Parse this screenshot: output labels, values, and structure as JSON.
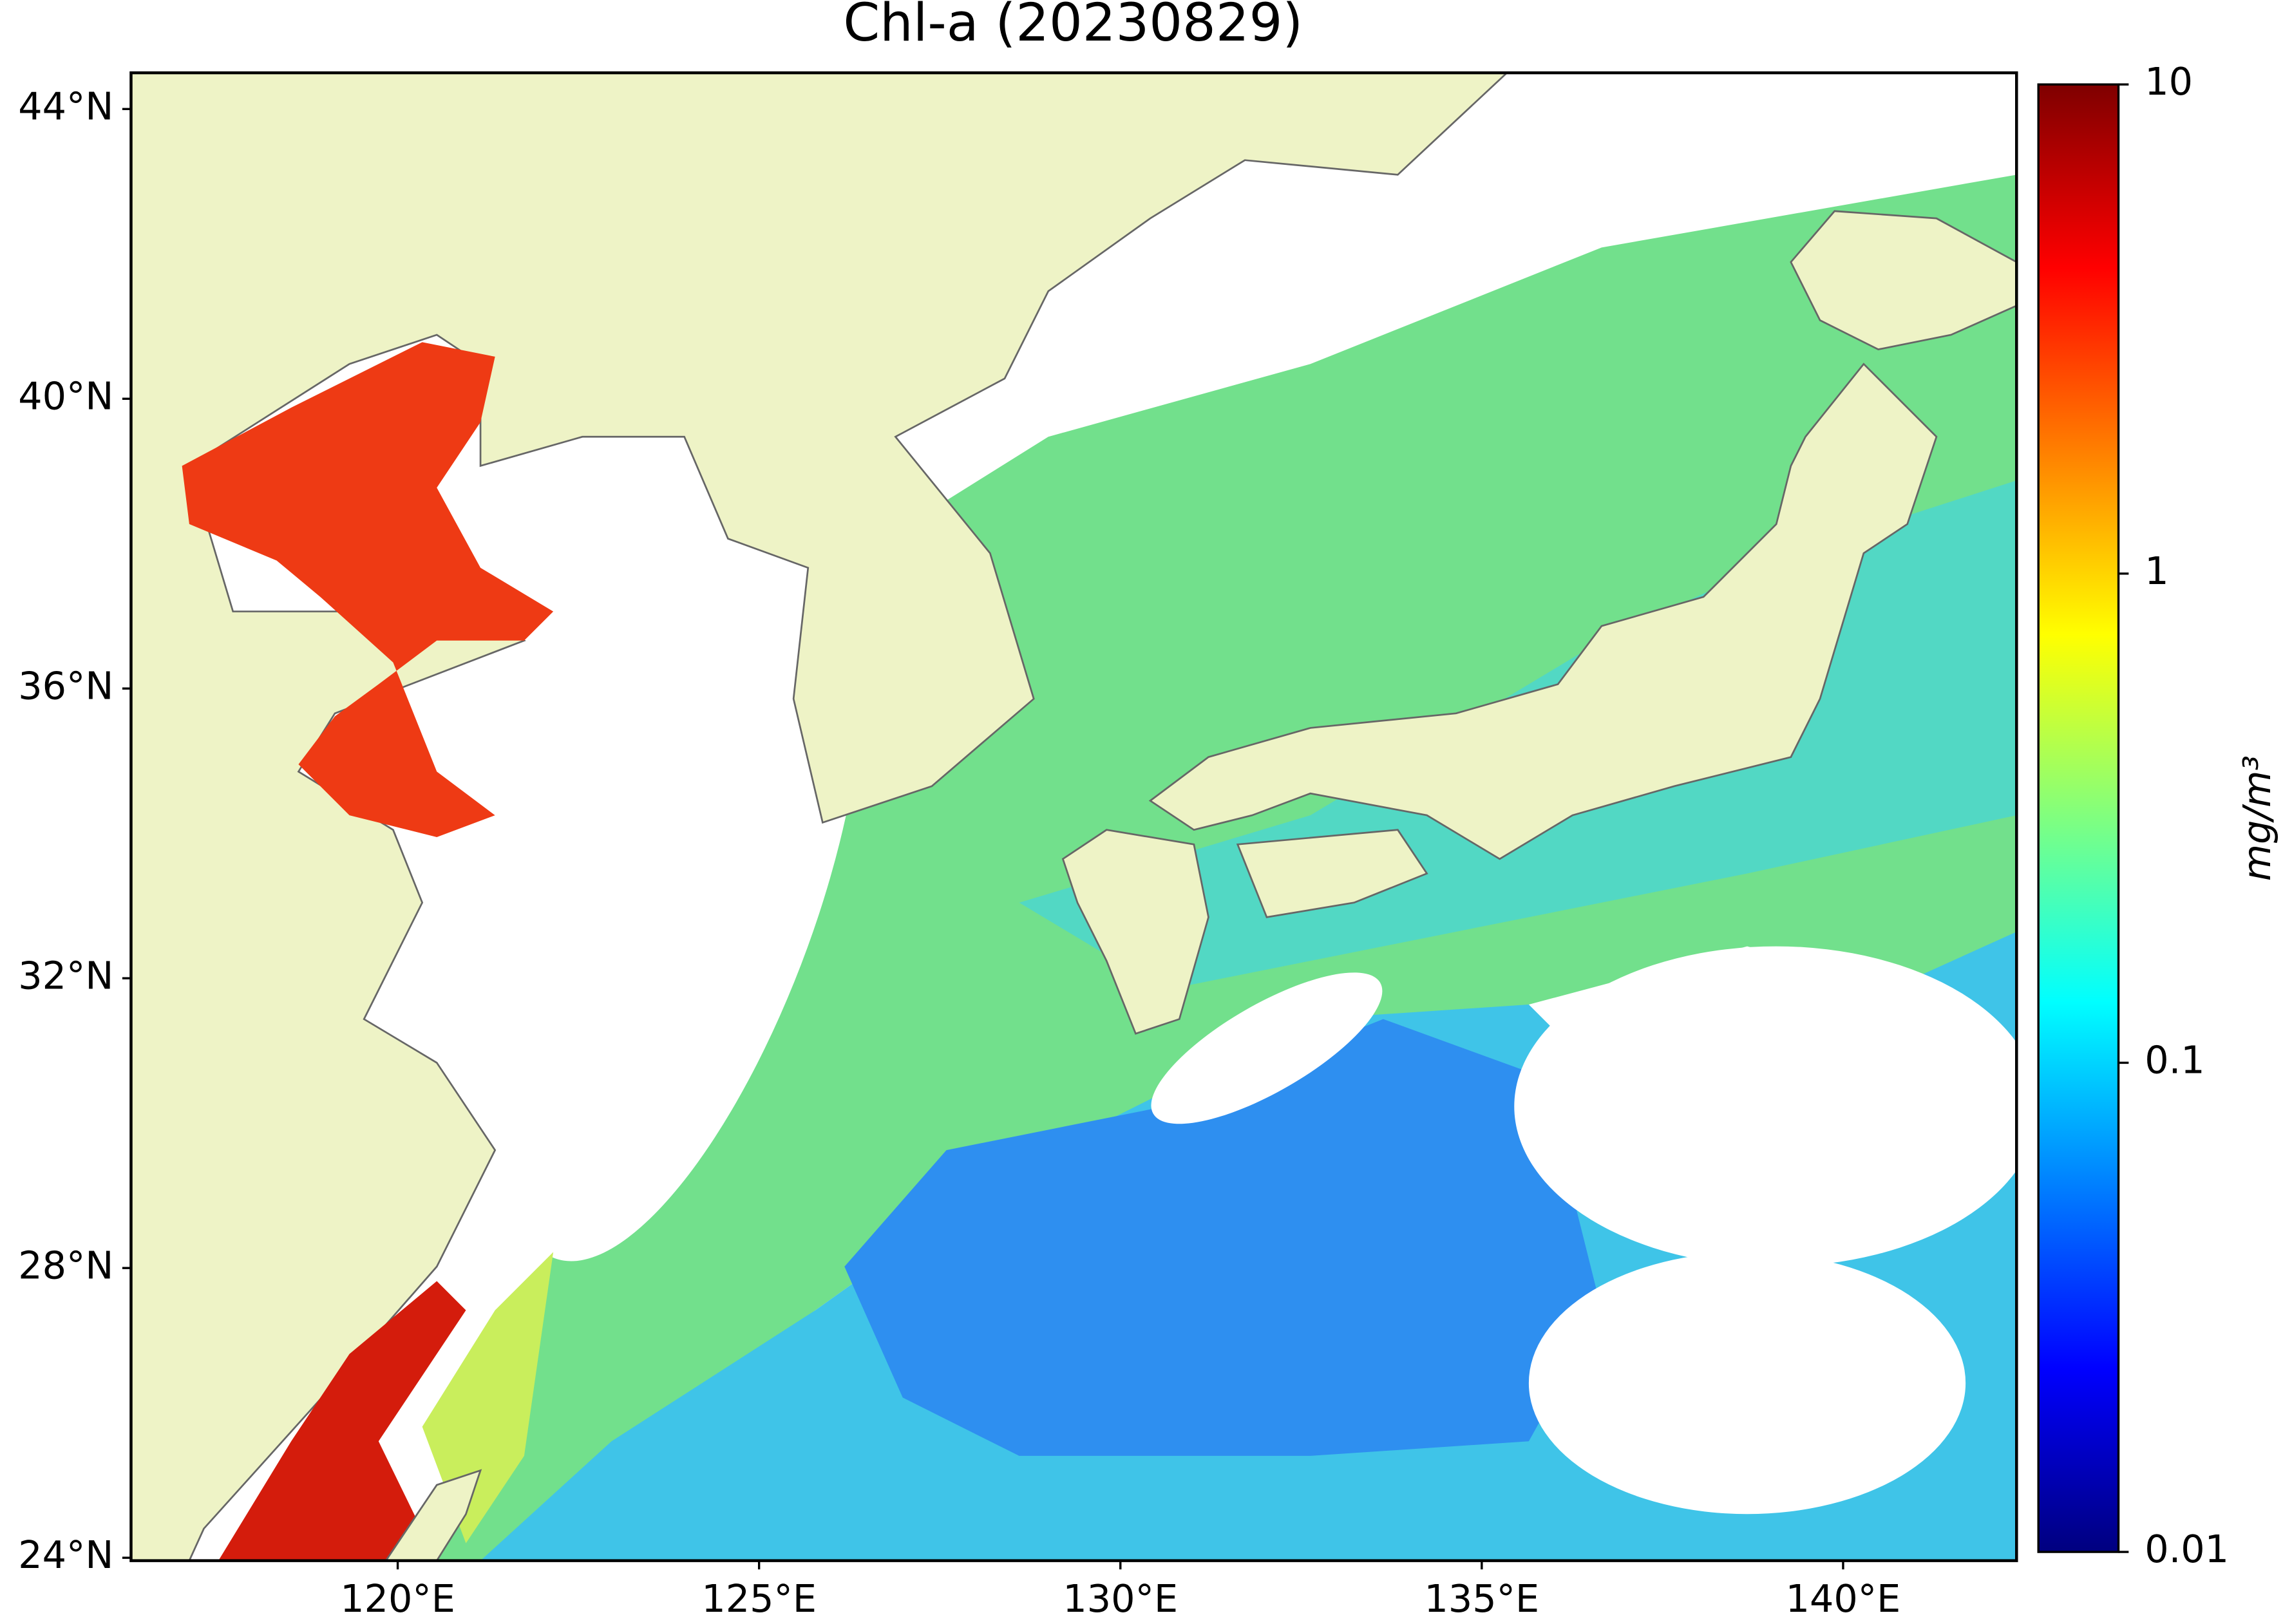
{
  "chart_data": {
    "type": "map",
    "title": "Chl-a (20230829)",
    "xlim": [
      116.31,
      142.4
    ],
    "ylim": [
      23.96,
      44.5
    ],
    "xticks": [
      {
        "value": 120,
        "label": "120°E"
      },
      {
        "value": 125,
        "label": "125°E"
      },
      {
        "value": 130,
        "label": "130°E"
      },
      {
        "value": 135,
        "label": "135°E"
      },
      {
        "value": 140,
        "label": "140°E"
      }
    ],
    "yticks": [
      {
        "value": 24,
        "label": "24°N"
      },
      {
        "value": 28,
        "label": "28°N"
      },
      {
        "value": 32,
        "label": "32°N"
      },
      {
        "value": 36,
        "label": "36°N"
      },
      {
        "value": 40,
        "label": "40°N"
      },
      {
        "value": 44,
        "label": "44°N"
      }
    ],
    "colorbar": {
      "label": "mg/m³",
      "scale": "log",
      "lim": [
        0.01,
        10
      ],
      "ticks": [
        0.01,
        0.1,
        1,
        10
      ],
      "colormap": "jet"
    }
  }
}
